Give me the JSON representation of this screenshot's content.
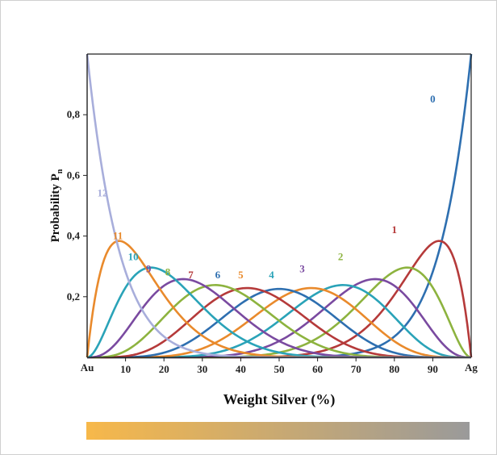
{
  "chart_data": {
    "type": "line",
    "xlabel": "Weight Silver (%)",
    "ylabel": "Probability P",
    "ylabel_sub": "n",
    "x_end_labels": {
      "left": "Au",
      "right": "Ag"
    },
    "xlim": [
      0,
      100
    ],
    "ylim": [
      0,
      1
    ],
    "x_ticks": [
      10,
      20,
      30,
      40,
      50,
      60,
      70,
      80,
      90
    ],
    "y_ticks": [
      {
        "value": 0.2,
        "label": "0,2"
      },
      {
        "value": 0.4,
        "label": "0,4"
      },
      {
        "value": 0.6,
        "label": "0,6"
      },
      {
        "value": 0.8,
        "label": "0,8"
      }
    ],
    "grid": false,
    "legend": "none",
    "series": [
      {
        "name": "0",
        "n": 0,
        "peak_x": 100,
        "peak_y": 1.0,
        "color": "#2e6fb0",
        "label_at": [
          90,
          0.84
        ]
      },
      {
        "name": "1",
        "n": 1,
        "peak_x": 92,
        "peak_y": 0.38,
        "color": "#b53a3a",
        "label_at": [
          80,
          0.41
        ]
      },
      {
        "name": "2",
        "n": 2,
        "peak_x": 83,
        "peak_y": 0.29,
        "color": "#8db33f",
        "label_at": [
          66,
          0.32
        ]
      },
      {
        "name": "3",
        "n": 3,
        "peak_x": 75,
        "peak_y": 0.26,
        "color": "#7a4aa0",
        "label_at": [
          56,
          0.28
        ]
      },
      {
        "name": "4",
        "n": 4,
        "peak_x": 67,
        "peak_y": 0.24,
        "color": "#2aa3b8",
        "label_at": [
          48,
          0.26
        ]
      },
      {
        "name": "5",
        "n": 5,
        "peak_x": 58,
        "peak_y": 0.23,
        "color": "#e98a2c",
        "label_at": [
          40,
          0.26
        ]
      },
      {
        "name": "6",
        "n": 6,
        "peak_x": 50,
        "peak_y": 0.23,
        "color": "#2e6fb0",
        "label_at": [
          34,
          0.26
        ]
      },
      {
        "name": "7",
        "n": 7,
        "peak_x": 42,
        "peak_y": 0.23,
        "color": "#b53a3a",
        "label_at": [
          27,
          0.26
        ]
      },
      {
        "name": "8",
        "n": 8,
        "peak_x": 33,
        "peak_y": 0.24,
        "color": "#8db33f",
        "label_at": [
          21,
          0.27
        ]
      },
      {
        "name": "9",
        "n": 9,
        "peak_x": 25,
        "peak_y": 0.26,
        "color": "#7a4aa0",
        "label_at": [
          16,
          0.28
        ]
      },
      {
        "name": "10",
        "n": 10,
        "peak_x": 17,
        "peak_y": 0.29,
        "color": "#2aa3b8",
        "label_at": [
          12,
          0.32
        ]
      },
      {
        "name": "11",
        "n": 11,
        "peak_x": 8,
        "peak_y": 0.38,
        "color": "#e98a2c",
        "label_at": [
          8,
          0.39
        ]
      },
      {
        "name": "12",
        "n": 12,
        "peak_x": 0,
        "peak_y": 1.0,
        "color": "#a8aedb",
        "label_at": [
          4,
          0.53
        ]
      }
    ]
  },
  "color_bar": {
    "from": "#f7b84a",
    "to": "#9a9a9a"
  }
}
